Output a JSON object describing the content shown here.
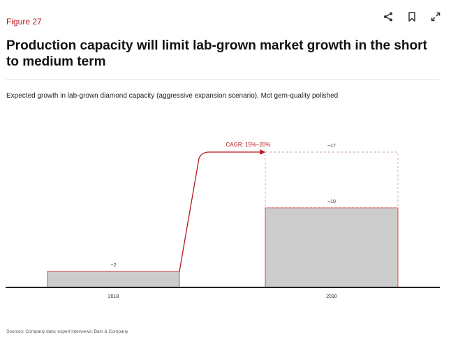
{
  "figure_label": "Figure 27",
  "title": "Production capacity will limit lab-grown market growth in the short to medium term",
  "subtitle": "Expected growth in lab-grown diamond capacity (aggressive expansion scenario), Mct gem-quality polished",
  "sources": "Sources: Company data; expert interviews; Bain & Company",
  "toolbar": {
    "share_icon": "share-icon",
    "bookmark_icon": "bookmark-icon",
    "expand_icon": "expand-icon"
  },
  "colors": {
    "accent": "#b5171d",
    "bar": "#cccccc",
    "bar_edge": "#c9302c",
    "dashed": "#d0a0a0",
    "axis": "#222222"
  },
  "chart_data": {
    "type": "bar",
    "categories": [
      "2018",
      "2030"
    ],
    "series": [
      {
        "values": [
          2,
          10
        ],
        "labels": [
          "~2",
          "~10"
        ]
      },
      {
        "values": [
          null,
          17
        ],
        "labels": [
          "",
          "~17"
        ],
        "style": "dashed-outline"
      }
    ],
    "annotation": "CAGR: 15%–20%",
    "ylim": [
      0,
      21
    ],
    "grid": false,
    "legend": "none"
  }
}
